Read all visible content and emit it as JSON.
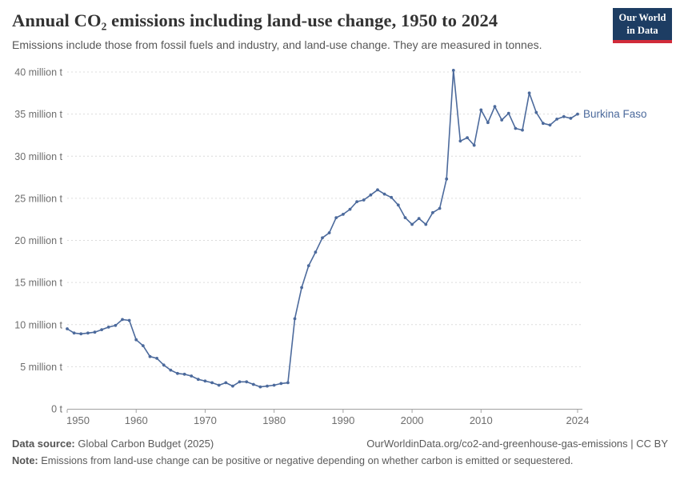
{
  "header": {
    "title": "Annual CO₂ emissions including land-use change, 1950 to 2024",
    "subtitle": "Emissions include those from fossil fuels and industry, and land-use change. They are measured in tonnes.",
    "logo": {
      "line1": "Our World",
      "line2": "in Data",
      "bg_color": "#1d3d63",
      "accent_color": "#d12b3a"
    }
  },
  "chart_data": {
    "type": "line",
    "title": "Annual CO₂ emissions including land-use change, 1950 to 2024",
    "entity_label": "Burkina Faso",
    "line_color": "#4c6a9c",
    "grid": "horizontal-dashed",
    "legend_position": "end-of-line-label",
    "xlim": [
      1950,
      2024
    ],
    "ylim": [
      0,
      40
    ],
    "y_unit": "million t",
    "x_ticks": [
      {
        "year": 1950,
        "label": "1950"
      },
      {
        "year": 1960,
        "label": "1960"
      },
      {
        "year": 1970,
        "label": "1970"
      },
      {
        "year": 1980,
        "label": "1980"
      },
      {
        "year": 1990,
        "label": "1990"
      },
      {
        "year": 2000,
        "label": "2000"
      },
      {
        "year": 2010,
        "label": "2010"
      },
      {
        "year": 2024,
        "label": "2024"
      }
    ],
    "y_ticks": [
      {
        "value": 0,
        "label": "0 t"
      },
      {
        "value": 5,
        "label": "5 million t"
      },
      {
        "value": 10,
        "label": "10 million t"
      },
      {
        "value": 15,
        "label": "15 million t"
      },
      {
        "value": 20,
        "label": "20 million t"
      },
      {
        "value": 25,
        "label": "25 million t"
      },
      {
        "value": 30,
        "label": "30 million t"
      },
      {
        "value": 35,
        "label": "35 million t"
      },
      {
        "value": 40,
        "label": "40 million t"
      }
    ],
    "series": [
      {
        "name": "Burkina Faso",
        "start_year": 1950,
        "values": [
          9.5,
          9.0,
          8.9,
          9.0,
          9.1,
          9.4,
          9.7,
          9.9,
          10.6,
          10.5,
          8.2,
          7.5,
          6.2,
          6.0,
          5.2,
          4.6,
          4.2,
          4.1,
          3.9,
          3.5,
          3.3,
          3.1,
          2.8,
          3.1,
          2.7,
          3.2,
          3.2,
          2.9,
          2.6,
          2.7,
          2.8,
          3.0,
          3.1,
          10.7,
          14.4,
          17.0,
          18.6,
          20.3,
          20.9,
          22.7,
          23.1,
          23.7,
          24.6,
          24.8,
          25.4,
          26.0,
          25.5,
          25.1,
          24.2,
          22.7,
          21.9,
          22.6,
          21.9,
          23.3,
          23.8,
          27.3,
          40.2,
          31.8,
          32.2,
          31.3,
          35.5,
          34.0,
          35.9,
          34.3,
          35.1,
          33.3,
          33.1,
          37.5,
          35.2,
          33.9,
          33.7,
          34.4,
          34.7,
          34.5,
          35.0
        ]
      }
    ]
  },
  "footer": {
    "source_label": "Data source:",
    "source_text": " Global Carbon Budget (2025)",
    "link_text": "OurWorldinData.org/co2-and-greenhouse-gas-emissions | CC BY",
    "note_label": "Note:",
    "note_text": " Emissions from land-use change can be positive or negative depending on whether carbon is emitted or sequestered."
  }
}
